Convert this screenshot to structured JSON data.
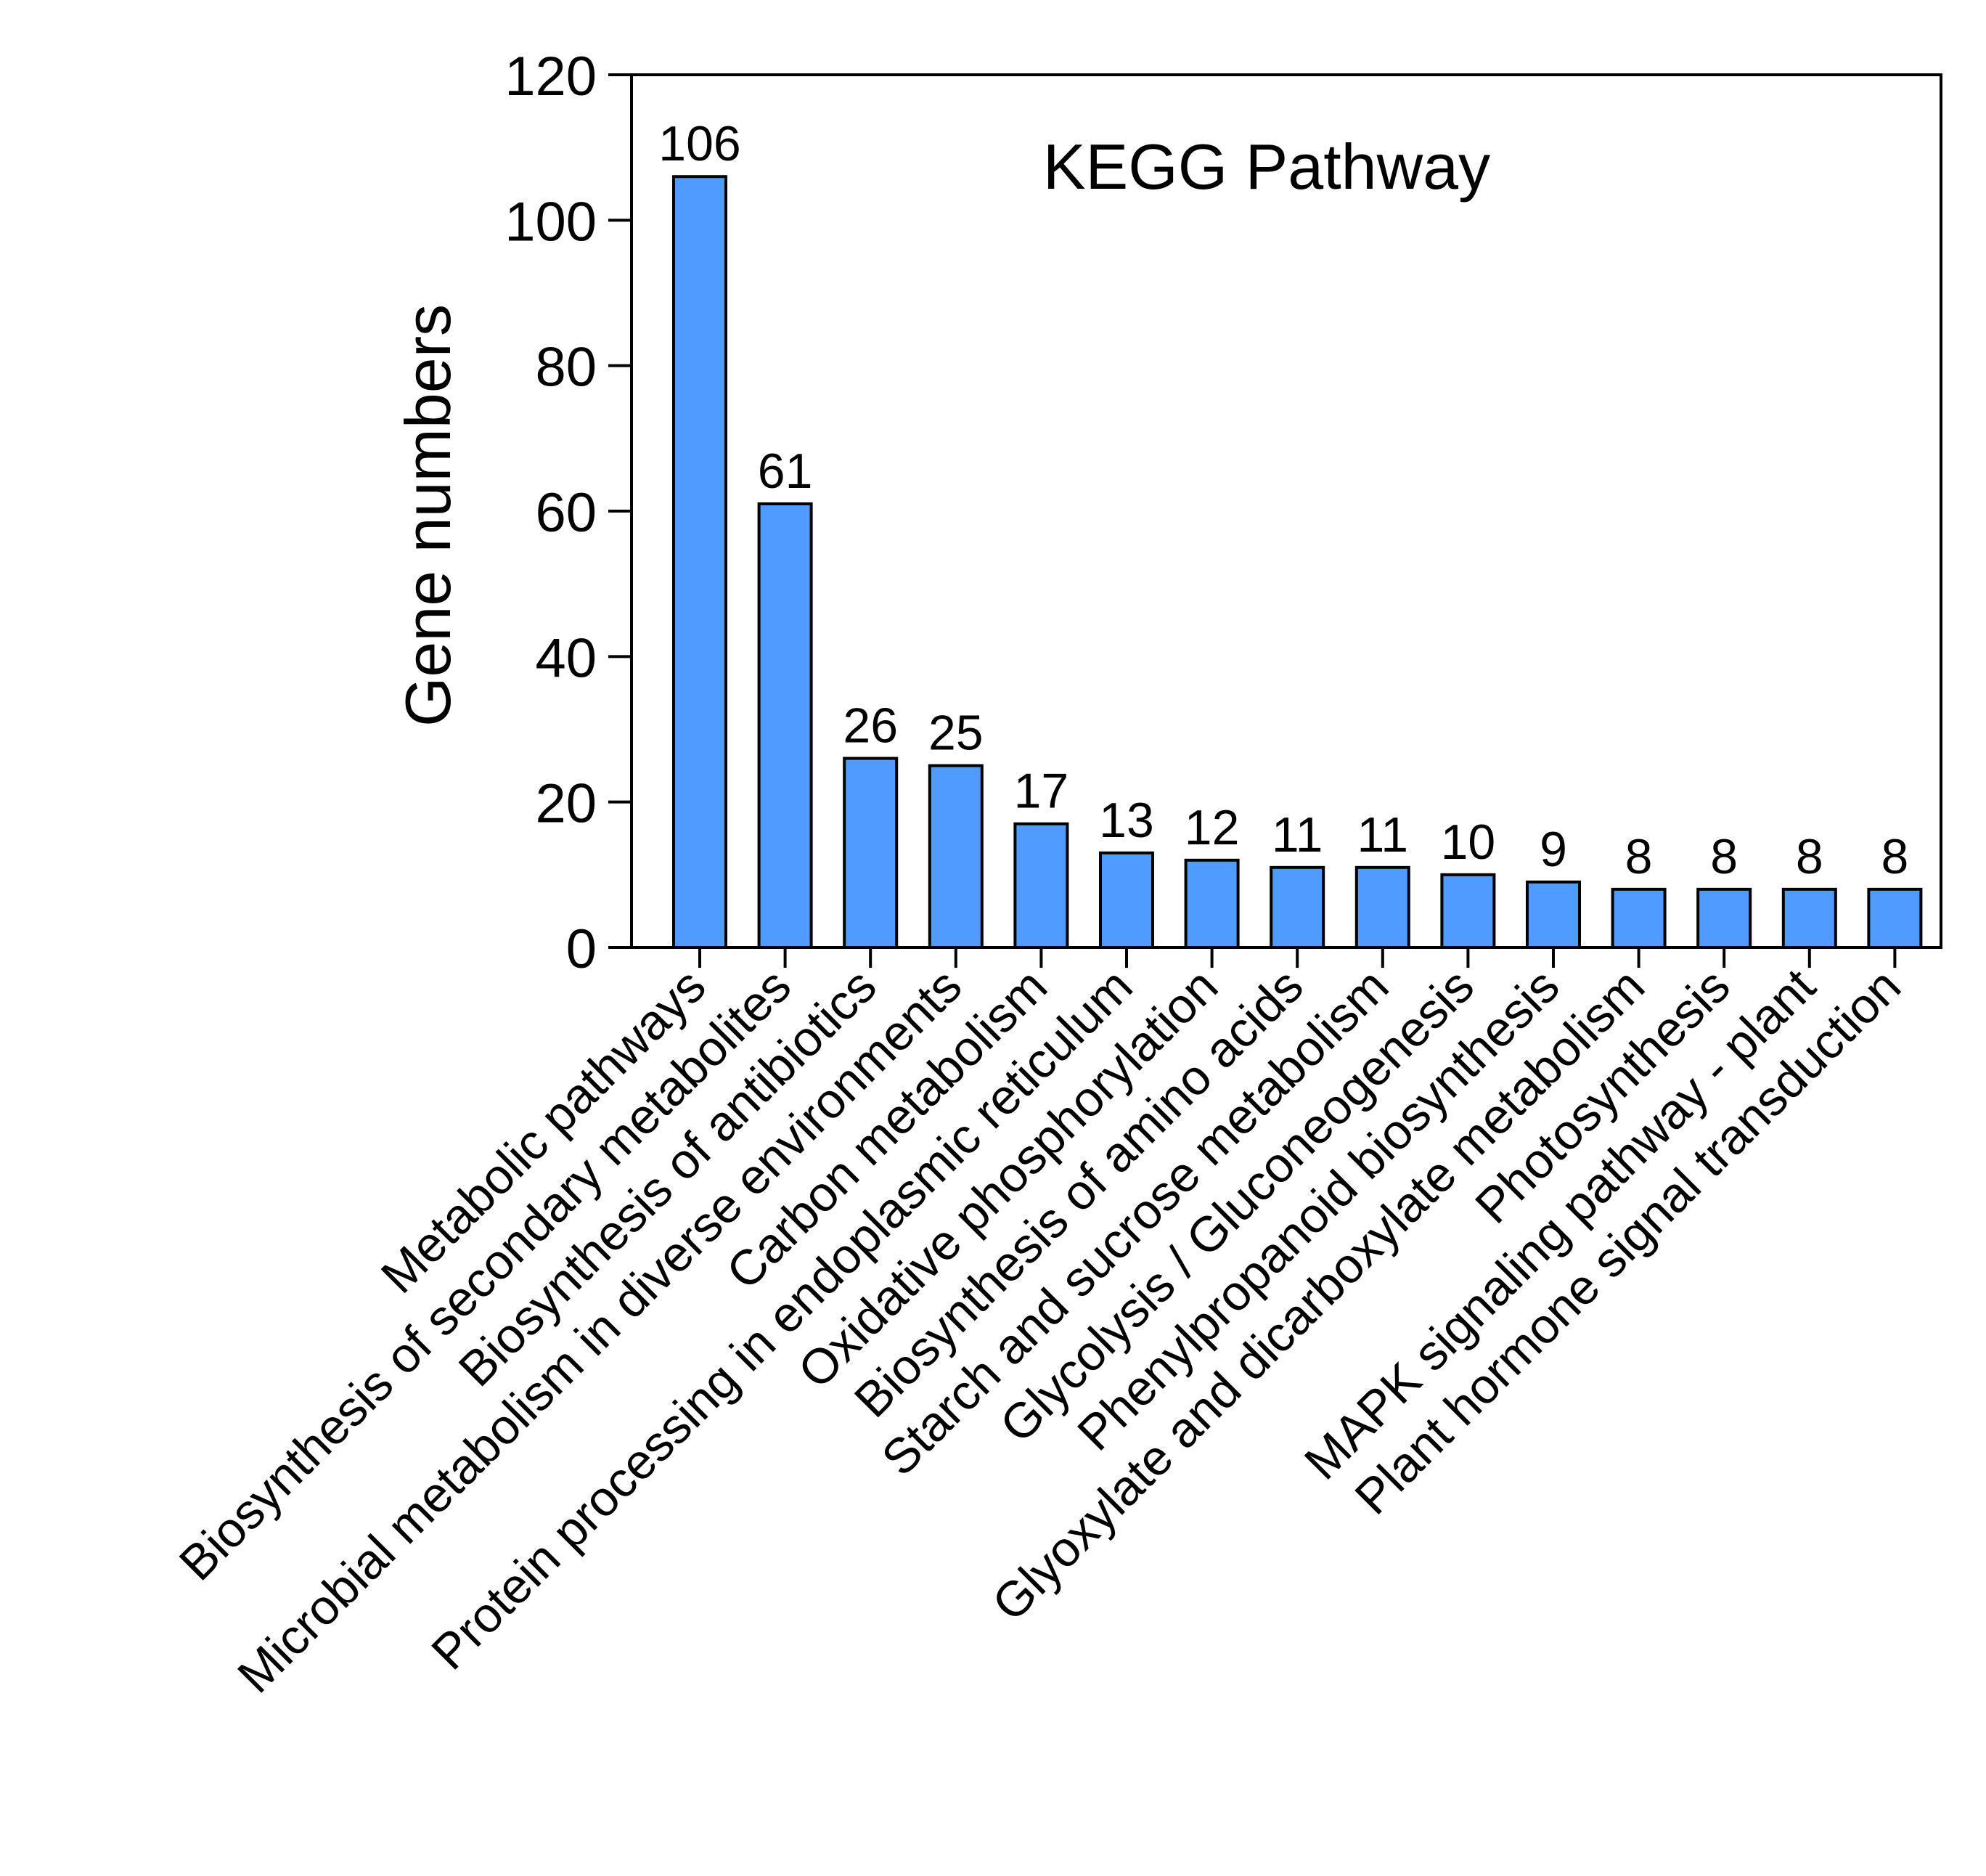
{
  "colors": {
    "bar_fill": "#4f9bff",
    "bar_stroke": "#000000",
    "axis": "#000000"
  },
  "chart_data": {
    "type": "bar",
    "title": "KEGG Pathway",
    "xlabel": "",
    "ylabel": "Gene numbers",
    "ylim": [
      0,
      120
    ],
    "yticks": [
      0,
      20,
      40,
      60,
      80,
      100,
      120
    ],
    "grid": false,
    "categories": [
      "Metabolic pathways",
      "Biosynthesis of secondary metabolites",
      "Biosynthesis of antibiotics",
      "Microbial metabolism in diverse environments",
      "Carbon metabolism",
      "Protein processing in endoplasmic reticulum",
      "Oxidative phosphorylation",
      "Biosynthesis of amino acids",
      "Starch and sucrose metabolism",
      "Glycolysis / Gluconeogenesis",
      "Phenylpropanoid biosynthesis",
      "Glyoxylate and dicarboxylate metabolism",
      "Photosynthesis",
      "MAPK signaling pathway - plant",
      "Plant hormone signal transduction"
    ],
    "values": [
      106,
      61,
      26,
      25,
      17,
      13,
      12,
      11,
      11,
      10,
      9,
      8,
      8,
      8,
      8
    ],
    "value_labels": [
      "106",
      "61",
      "26",
      "25",
      "17",
      "13",
      "12",
      "11",
      "11",
      "10",
      "9",
      "8",
      "8",
      "8",
      "8"
    ]
  }
}
